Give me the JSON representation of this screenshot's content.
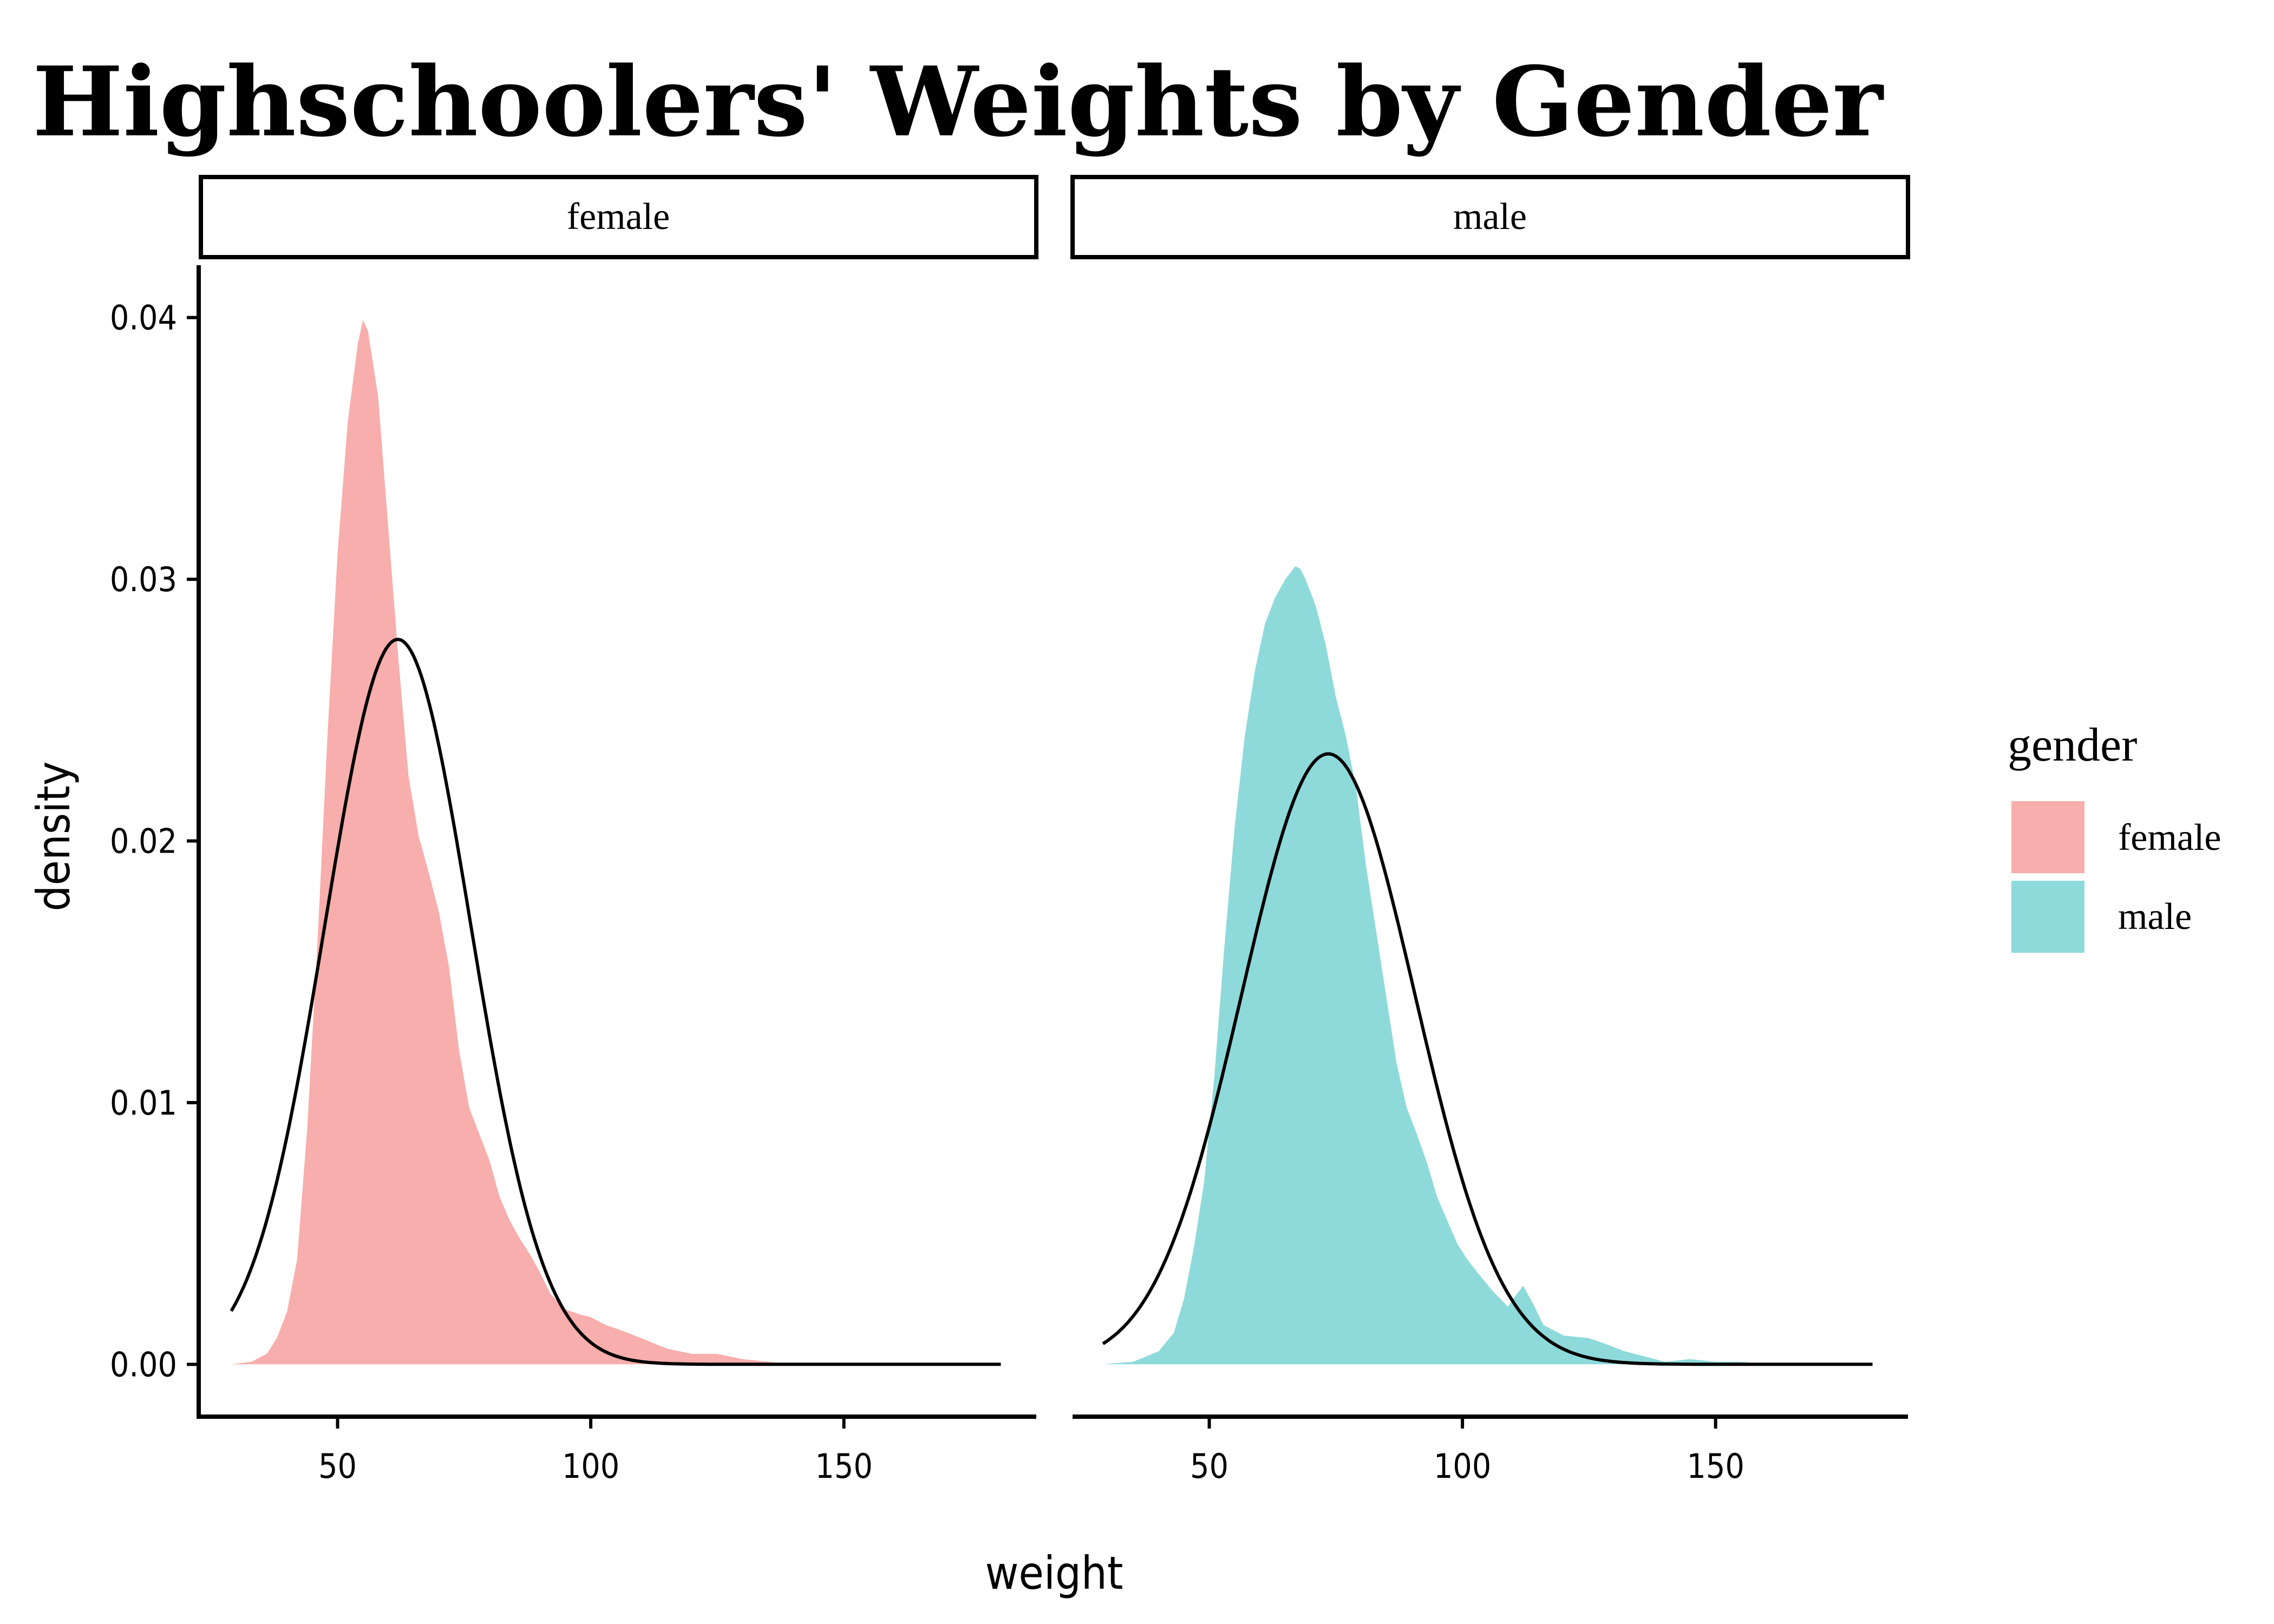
{
  "title": "Highschoolers' Weights by Gender",
  "colors": {
    "female": "#F8AEAC",
    "male": "#8EDADB",
    "normal_curve": "#000000"
  },
  "chart_data": {
    "type": "area",
    "title": "Highschoolers' Weights by Gender",
    "xlabel": "weight",
    "ylabel": "density",
    "xlim": [
      23,
      188
    ],
    "ylim": [
      -0.002,
      0.042
    ],
    "x_ticks": [
      50,
      100,
      150
    ],
    "y_ticks": [
      0.0,
      0.01,
      0.02,
      0.03,
      0.04
    ],
    "x_tick_labels": [
      "50",
      "100",
      "150"
    ],
    "y_tick_labels": [
      "0.00",
      "0.01",
      "0.02",
      "0.03",
      "0.04"
    ],
    "grid": false,
    "legend": {
      "title": "gender",
      "position": "right",
      "entries": [
        "female",
        "male"
      ]
    },
    "facets": [
      {
        "label": "female",
        "density": {
          "x": [
            29,
            33,
            36,
            38,
            40,
            42,
            44,
            46,
            48,
            50,
            52,
            54,
            55,
            56,
            58,
            60,
            62,
            64,
            66,
            68,
            70,
            72,
            74,
            76,
            78,
            80,
            82,
            84,
            86,
            88,
            90,
            92,
            95,
            98,
            100,
            103,
            106,
            110,
            115,
            120,
            125,
            130,
            135,
            140
          ],
          "y": [
            0.0,
            0.0001,
            0.0004,
            0.001,
            0.002,
            0.004,
            0.009,
            0.016,
            0.024,
            0.031,
            0.036,
            0.039,
            0.0399,
            0.0395,
            0.037,
            0.032,
            0.027,
            0.0225,
            0.0202,
            0.0188,
            0.0173,
            0.0152,
            0.012,
            0.0098,
            0.0088,
            0.0078,
            0.0064,
            0.0055,
            0.0048,
            0.0042,
            0.0035,
            0.0027,
            0.0021,
            0.0019,
            0.0018,
            0.0015,
            0.0013,
            0.001,
            0.0006,
            0.0004,
            0.0004,
            0.0002,
            0.0001,
            0.0
          ]
        },
        "normal": {
          "mean": 61.9,
          "sd": 14.4,
          "x_range": [
            29,
            181
          ]
        }
      },
      {
        "label": "male",
        "density": {
          "x": [
            29,
            35,
            40,
            43,
            45,
            47,
            49,
            51,
            53,
            55,
            57,
            59,
            61,
            63,
            65,
            67,
            68,
            69,
            71,
            73,
            75,
            77,
            79,
            81,
            83,
            85,
            87,
            89,
            91,
            93,
            95,
            97,
            99,
            101,
            103,
            106,
            109,
            110,
            112,
            114,
            116,
            120,
            125,
            128,
            132,
            136,
            140,
            145,
            150,
            155,
            160
          ],
          "y": [
            0.0,
            0.0001,
            0.0005,
            0.0012,
            0.0025,
            0.0045,
            0.007,
            0.011,
            0.016,
            0.0205,
            0.024,
            0.0265,
            0.0283,
            0.0293,
            0.03,
            0.0305,
            0.0304,
            0.03,
            0.029,
            0.0275,
            0.0255,
            0.024,
            0.022,
            0.019,
            0.0165,
            0.014,
            0.0115,
            0.0098,
            0.0088,
            0.0077,
            0.0064,
            0.0055,
            0.0046,
            0.004,
            0.0035,
            0.0028,
            0.0022,
            0.0025,
            0.003,
            0.0023,
            0.0015,
            0.0011,
            0.001,
            0.0008,
            0.0005,
            0.0003,
            0.0001,
            0.0002,
            0.0001,
            0.0001,
            0.0
          ]
        },
        "normal": {
          "mean": 73.5,
          "sd": 17.1,
          "x_range": [
            29,
            181
          ]
        }
      }
    ]
  }
}
